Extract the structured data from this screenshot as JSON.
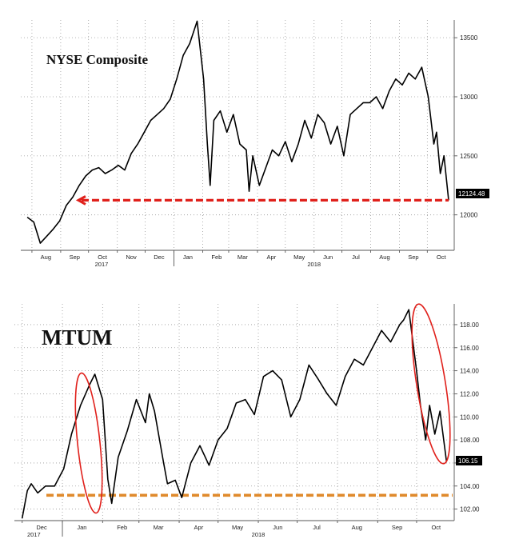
{
  "chart_data": [
    {
      "type": "line",
      "title": "NYSE Composite",
      "xlabel": "",
      "ylabel": "",
      "ylim": [
        11700,
        13650
      ],
      "yticks": [
        12000,
        12500,
        13000,
        13500
      ],
      "yticklabels": [
        "12000",
        "12500",
        "13000",
        "13500"
      ],
      "xticklabels": [
        "Aug",
        "Sep",
        "Oct",
        "Nov",
        "Dec",
        "Jan",
        "Feb",
        "Mar",
        "Apr",
        "May",
        "Jun",
        "Jul",
        "Aug",
        "Sep",
        "Oct"
      ],
      "year_labels": [
        "2017",
        "2018"
      ],
      "last_value_label": "12124.48",
      "grid": true,
      "annotation": "red dashed arrow at 12124.48 pointing back to Sep 2017",
      "series": [
        {
          "x": [
            "2017-07-27",
            "2017-08-03",
            "2017-08-10",
            "2017-08-17",
            "2017-08-24",
            "2017-08-31",
            "2017-09-07",
            "2017-09-14",
            "2017-09-21",
            "2017-09-28",
            "2017-10-05",
            "2017-10-12",
            "2017-10-19",
            "2017-10-26",
            "2017-11-02",
            "2017-11-09",
            "2017-11-16",
            "2017-11-23",
            "2017-11-30",
            "2017-12-07",
            "2017-12-14",
            "2017-12-21",
            "2017-12-28",
            "2018-01-04",
            "2018-01-11",
            "2018-01-18",
            "2018-01-26",
            "2018-02-02",
            "2018-02-06",
            "2018-02-09",
            "2018-02-13",
            "2018-02-20",
            "2018-02-27",
            "2018-03-06",
            "2018-03-13",
            "2018-03-20",
            "2018-03-23",
            "2018-03-27",
            "2018-04-03",
            "2018-04-10",
            "2018-04-17",
            "2018-04-24",
            "2018-05-01",
            "2018-05-08",
            "2018-05-15",
            "2018-05-22",
            "2018-05-29",
            "2018-06-05",
            "2018-06-12",
            "2018-06-19",
            "2018-06-26",
            "2018-07-03",
            "2018-07-10",
            "2018-07-17",
            "2018-07-24",
            "2018-07-31",
            "2018-08-07",
            "2018-08-14",
            "2018-08-21",
            "2018-08-28",
            "2018-09-04",
            "2018-09-11",
            "2018-09-18",
            "2018-09-25",
            "2018-10-02",
            "2018-10-05",
            "2018-10-08",
            "2018-10-11",
            "2018-10-15",
            "2018-10-19",
            "2018-10-24"
          ],
          "values": [
            11980,
            11940,
            11760,
            11820,
            11880,
            11950,
            12080,
            12150,
            12250,
            12330,
            12380,
            12400,
            12350,
            12380,
            12420,
            12380,
            12520,
            12600,
            12700,
            12800,
            12850,
            12900,
            12980,
            13150,
            13350,
            13450,
            13640,
            13150,
            12600,
            12250,
            12800,
            12880,
            12700,
            12850,
            12600,
            12550,
            12200,
            12500,
            12250,
            12400,
            12550,
            12500,
            12620,
            12450,
            12600,
            12800,
            12650,
            12850,
            12780,
            12600,
            12750,
            12500,
            12850,
            12900,
            12950,
            12950,
            13000,
            12900,
            13050,
            13150,
            13100,
            13200,
            13150,
            13250,
            13000,
            12800,
            12600,
            12700,
            12350,
            12500,
            12124
          ]
        }
      ]
    },
    {
      "type": "line",
      "title": "MTUM",
      "xlabel": "",
      "ylabel": "",
      "ylim": [
        101,
        119.8
      ],
      "yticks": [
        102,
        104,
        106,
        108,
        110,
        112,
        114,
        116,
        118
      ],
      "yticklabels": [
        "102.00",
        "104.00",
        "106.00",
        "108.00",
        "110.00",
        "112.00",
        "114.00",
        "116.00",
        "118.00"
      ],
      "xticklabels": [
        "Dec",
        "Jan",
        "Feb",
        "Mar",
        "Apr",
        "May",
        "Jun",
        "Jul",
        "Aug",
        "Sep",
        "Oct"
      ],
      "year_labels": [
        "2017",
        "2018"
      ],
      "last_value_label": "106.15",
      "grid": true,
      "annotation": "orange dashed support line near 103.2; red ovals around late-Jan and early-Oct selloffs",
      "series": [
        {
          "x": [
            "2017-12-01",
            "2017-12-05",
            "2017-12-08",
            "2017-12-13",
            "2017-12-19",
            "2017-12-26",
            "2018-01-02",
            "2018-01-08",
            "2018-01-15",
            "2018-01-22",
            "2018-01-26",
            "2018-02-01",
            "2018-02-05",
            "2018-02-08",
            "2018-02-13",
            "2018-02-20",
            "2018-02-27",
            "2018-03-06",
            "2018-03-09",
            "2018-03-13",
            "2018-03-20",
            "2018-03-23",
            "2018-03-29",
            "2018-04-03",
            "2018-04-10",
            "2018-04-17",
            "2018-04-24",
            "2018-05-01",
            "2018-05-08",
            "2018-05-15",
            "2018-05-22",
            "2018-05-29",
            "2018-06-05",
            "2018-06-12",
            "2018-06-19",
            "2018-06-26",
            "2018-07-03",
            "2018-07-10",
            "2018-07-17",
            "2018-07-24",
            "2018-07-31",
            "2018-08-07",
            "2018-08-14",
            "2018-08-21",
            "2018-08-28",
            "2018-09-04",
            "2018-09-11",
            "2018-09-18",
            "2018-09-21",
            "2018-09-25",
            "2018-10-01",
            "2018-10-04",
            "2018-10-08",
            "2018-10-11",
            "2018-10-15",
            "2018-10-19",
            "2018-10-24"
          ],
          "values": [
            101.2,
            103.6,
            104.2,
            103.4,
            104.0,
            104.0,
            105.5,
            108.5,
            111.0,
            112.8,
            113.7,
            111.5,
            104.6,
            102.5,
            106.5,
            108.8,
            111.5,
            109.5,
            112.0,
            110.5,
            106.0,
            104.2,
            104.5,
            103.0,
            106.0,
            107.5,
            105.8,
            108.0,
            109.0,
            111.2,
            111.5,
            110.2,
            113.5,
            114.0,
            113.2,
            110.0,
            111.5,
            114.5,
            113.3,
            112.0,
            111.0,
            113.5,
            115.0,
            114.5,
            116.0,
            117.5,
            116.5,
            118.0,
            118.4,
            119.3,
            114.0,
            111.0,
            108.0,
            111.0,
            108.5,
            110.5,
            106.15
          ]
        }
      ]
    }
  ]
}
